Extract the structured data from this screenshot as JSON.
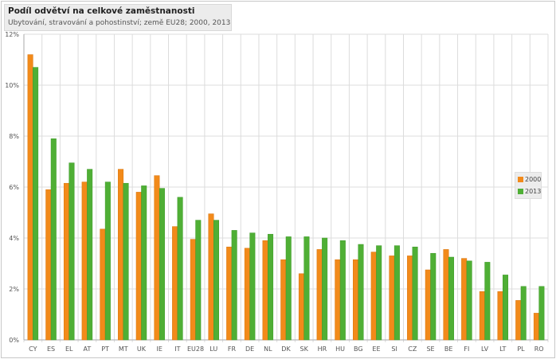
{
  "chart_data": {
    "type": "bar",
    "title": "Podíl odvětví na celkové zaměstnanosti",
    "subtitle": "Ubytování, stravování a pohostinství; země EU28; 2000, 2013",
    "xlabel": "",
    "ylabel": "",
    "ylim": [
      0,
      12
    ],
    "yticks": [
      "0%",
      "2%",
      "4%",
      "6%",
      "8%",
      "10%",
      "12%"
    ],
    "ytick_values": [
      0,
      2,
      4,
      6,
      8,
      10,
      12
    ],
    "grid": true,
    "legend_position": "right",
    "categories": [
      "CY",
      "ES",
      "EL",
      "AT",
      "PT",
      "MT",
      "UK",
      "IE",
      "IT",
      "EU28",
      "LU",
      "FR",
      "DE",
      "NL",
      "DK",
      "SK",
      "HR",
      "HU",
      "BG",
      "EE",
      "SI",
      "CZ",
      "SE",
      "BE",
      "FI",
      "LV",
      "LT",
      "PL",
      "RO"
    ],
    "series": [
      {
        "name": "2000",
        "color": "#f28a1a",
        "values": [
          11.2,
          5.9,
          6.15,
          6.2,
          4.35,
          6.7,
          5.8,
          6.45,
          4.45,
          3.95,
          4.95,
          3.65,
          3.6,
          3.9,
          3.15,
          2.6,
          3.55,
          3.15,
          3.15,
          3.45,
          3.3,
          3.3,
          2.75,
          3.55,
          3.2,
          1.9,
          1.9,
          1.55,
          1.05
        ]
      },
      {
        "name": "2013",
        "color": "#4faf35",
        "values": [
          10.7,
          7.9,
          6.95,
          6.7,
          6.2,
          6.15,
          6.05,
          5.95,
          5.6,
          4.7,
          4.7,
          4.3,
          4.2,
          4.15,
          4.05,
          4.05,
          4.0,
          3.9,
          3.75,
          3.7,
          3.7,
          3.65,
          3.4,
          3.25,
          3.1,
          3.05,
          2.55,
          2.1,
          2.1
        ]
      }
    ]
  }
}
